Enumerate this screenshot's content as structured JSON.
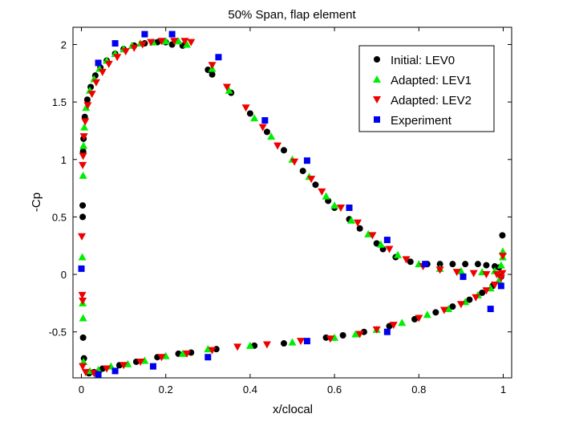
{
  "chart_data": {
    "type": "scatter",
    "title": "50% Span, flap element",
    "xlabel": "x/clocal",
    "ylabel": "-Cp",
    "xlim": [
      -0.02,
      1.02
    ],
    "ylim": [
      -0.9,
      2.15
    ],
    "x_ticks": [
      0,
      0.2,
      0.4,
      0.6,
      0.8,
      1
    ],
    "x_tick_labels": [
      "0",
      "0.2",
      "0.4",
      "0.6",
      "0.8",
      "1"
    ],
    "y_ticks": [
      -0.5,
      0,
      0.5,
      1,
      1.5,
      2
    ],
    "y_tick_labels": [
      "-0.5",
      "0",
      "0.5",
      "1",
      "1.5",
      "2"
    ],
    "grid": false,
    "legend_position": "top-right",
    "series": [
      {
        "name": "Initial: LEV0",
        "marker": "circle",
        "color": "#000000",
        "points": [
          [
            0.003,
            0.6
          ],
          [
            0.003,
            0.5
          ],
          [
            0.004,
            1.07
          ],
          [
            0.005,
            1.18
          ],
          [
            0.008,
            1.37
          ],
          [
            0.014,
            1.52
          ],
          [
            0.022,
            1.63
          ],
          [
            0.033,
            1.73
          ],
          [
            0.045,
            1.8
          ],
          [
            0.06,
            1.86
          ],
          [
            0.08,
            1.92
          ],
          [
            0.1,
            1.96
          ],
          [
            0.125,
            1.99
          ],
          [
            0.15,
            2.01
          ],
          [
            0.18,
            2.02
          ],
          [
            0.2,
            2.02
          ],
          [
            0.215,
            2.0
          ],
          [
            0.24,
            1.99
          ],
          [
            0.3,
            1.78
          ],
          [
            0.31,
            1.74
          ],
          [
            0.355,
            1.58
          ],
          [
            0.4,
            1.4
          ],
          [
            0.44,
            1.24
          ],
          [
            0.48,
            1.08
          ],
          [
            0.525,
            0.9
          ],
          [
            0.555,
            0.78
          ],
          [
            0.585,
            0.64
          ],
          [
            0.6,
            0.58
          ],
          [
            0.635,
            0.48
          ],
          [
            0.66,
            0.4
          ],
          [
            0.7,
            0.27
          ],
          [
            0.715,
            0.22
          ],
          [
            0.745,
            0.15
          ],
          [
            0.78,
            0.11
          ],
          [
            0.82,
            0.09
          ],
          [
            0.85,
            0.09
          ],
          [
            0.88,
            0.09
          ],
          [
            0.91,
            0.09
          ],
          [
            0.94,
            0.09
          ],
          [
            0.96,
            0.08
          ],
          [
            0.98,
            0.07
          ],
          [
            0.99,
            0.06
          ],
          [
            0.998,
            0.34
          ],
          [
            0.004,
            -0.55
          ],
          [
            0.006,
            -0.73
          ],
          [
            0.018,
            -0.86
          ],
          [
            0.03,
            -0.85
          ],
          [
            0.05,
            -0.82
          ],
          [
            0.09,
            -0.79
          ],
          [
            0.13,
            -0.76
          ],
          [
            0.18,
            -0.72
          ],
          [
            0.23,
            -0.69
          ],
          [
            0.26,
            -0.68
          ],
          [
            0.32,
            -0.65
          ],
          [
            0.41,
            -0.62
          ],
          [
            0.48,
            -0.6
          ],
          [
            0.58,
            -0.55
          ],
          [
            0.62,
            -0.53
          ],
          [
            0.67,
            -0.5
          ],
          [
            0.73,
            -0.45
          ],
          [
            0.79,
            -0.39
          ],
          [
            0.84,
            -0.33
          ],
          [
            0.88,
            -0.28
          ],
          [
            0.92,
            -0.22
          ],
          [
            0.95,
            -0.16
          ],
          [
            0.975,
            -0.1
          ],
          [
            0.995,
            -0.02
          ]
        ]
      },
      {
        "name": "Adapted: LEV1",
        "marker": "triangle-up",
        "color": "#00ee00",
        "points": [
          [
            0.002,
            0.15
          ],
          [
            0.003,
            -0.25
          ],
          [
            0.004,
            -0.38
          ],
          [
            0.004,
            0.86
          ],
          [
            0.005,
            1.12
          ],
          [
            0.007,
            1.28
          ],
          [
            0.011,
            1.45
          ],
          [
            0.02,
            1.6
          ],
          [
            0.03,
            1.7
          ],
          [
            0.043,
            1.79
          ],
          [
            0.06,
            1.86
          ],
          [
            0.08,
            1.92
          ],
          [
            0.1,
            1.96
          ],
          [
            0.12,
            1.99
          ],
          [
            0.14,
            2.01
          ],
          [
            0.17,
            2.02
          ],
          [
            0.2,
            2.03
          ],
          [
            0.23,
            2.03
          ],
          [
            0.25,
            2.0
          ],
          [
            0.31,
            1.79
          ],
          [
            0.35,
            1.6
          ],
          [
            0.41,
            1.36
          ],
          [
            0.45,
            1.2
          ],
          [
            0.5,
            1.0
          ],
          [
            0.54,
            0.85
          ],
          [
            0.58,
            0.68
          ],
          [
            0.6,
            0.6
          ],
          [
            0.64,
            0.47
          ],
          [
            0.68,
            0.35
          ],
          [
            0.71,
            0.26
          ],
          [
            0.75,
            0.17
          ],
          [
            0.8,
            0.09
          ],
          [
            0.85,
            0.05
          ],
          [
            0.9,
            0.03
          ],
          [
            0.95,
            0.02
          ],
          [
            0.98,
            0.03
          ],
          [
            0.995,
            0.08
          ],
          [
            0.999,
            0.2
          ],
          [
            0.999,
            0.15
          ],
          [
            0.005,
            -0.76
          ],
          [
            0.02,
            -0.84
          ],
          [
            0.04,
            -0.83
          ],
          [
            0.07,
            -0.8
          ],
          [
            0.11,
            -0.78
          ],
          [
            0.15,
            -0.75
          ],
          [
            0.2,
            -0.71
          ],
          [
            0.24,
            -0.69
          ],
          [
            0.3,
            -0.65
          ],
          [
            0.4,
            -0.62
          ],
          [
            0.5,
            -0.59
          ],
          [
            0.6,
            -0.55
          ],
          [
            0.65,
            -0.52
          ],
          [
            0.7,
            -0.48
          ],
          [
            0.76,
            -0.42
          ],
          [
            0.82,
            -0.35
          ],
          [
            0.87,
            -0.3
          ],
          [
            0.91,
            -0.24
          ],
          [
            0.94,
            -0.18
          ],
          [
            0.97,
            -0.12
          ],
          [
            0.99,
            -0.05
          ]
        ]
      },
      {
        "name": "Adapted: LEV2",
        "marker": "triangle-down",
        "color": "#ee0000",
        "points": [
          [
            0.001,
            0.33
          ],
          [
            0.002,
            -0.18
          ],
          [
            0.003,
            -0.23
          ],
          [
            0.003,
            0.95
          ],
          [
            0.004,
            1.03
          ],
          [
            0.006,
            1.2
          ],
          [
            0.009,
            1.33
          ],
          [
            0.015,
            1.47
          ],
          [
            0.025,
            1.57
          ],
          [
            0.035,
            1.67
          ],
          [
            0.05,
            1.76
          ],
          [
            0.065,
            1.83
          ],
          [
            0.085,
            1.89
          ],
          [
            0.105,
            1.94
          ],
          [
            0.125,
            1.97
          ],
          [
            0.145,
            2.0
          ],
          [
            0.165,
            2.02
          ],
          [
            0.19,
            2.03
          ],
          [
            0.22,
            2.03
          ],
          [
            0.245,
            2.03
          ],
          [
            0.26,
            2.02
          ],
          [
            0.31,
            1.82
          ],
          [
            0.345,
            1.63
          ],
          [
            0.39,
            1.45
          ],
          [
            0.43,
            1.28
          ],
          [
            0.465,
            1.12
          ],
          [
            0.505,
            0.98
          ],
          [
            0.545,
            0.83
          ],
          [
            0.57,
            0.72
          ],
          [
            0.615,
            0.58
          ],
          [
            0.655,
            0.45
          ],
          [
            0.69,
            0.34
          ],
          [
            0.73,
            0.22
          ],
          [
            0.77,
            0.13
          ],
          [
            0.81,
            0.07
          ],
          [
            0.85,
            0.04
          ],
          [
            0.89,
            0.02
          ],
          [
            0.93,
            0.01
          ],
          [
            0.96,
            0.0
          ],
          [
            0.985,
            0.0
          ],
          [
            0.998,
            0.01
          ],
          [
            0.999,
            0.16
          ],
          [
            0.003,
            -0.8
          ],
          [
            0.01,
            -0.85
          ],
          [
            0.03,
            -0.86
          ],
          [
            0.06,
            -0.82
          ],
          [
            0.1,
            -0.79
          ],
          [
            0.14,
            -0.76
          ],
          [
            0.19,
            -0.72
          ],
          [
            0.25,
            -0.69
          ],
          [
            0.31,
            -0.66
          ],
          [
            0.37,
            -0.63
          ],
          [
            0.44,
            -0.61
          ],
          [
            0.52,
            -0.58
          ],
          [
            0.59,
            -0.56
          ],
          [
            0.66,
            -0.52
          ],
          [
            0.7,
            -0.48
          ],
          [
            0.74,
            -0.44
          ],
          [
            0.8,
            -0.38
          ],
          [
            0.86,
            -0.31
          ],
          [
            0.9,
            -0.26
          ],
          [
            0.935,
            -0.2
          ],
          [
            0.96,
            -0.14
          ],
          [
            0.98,
            -0.09
          ],
          [
            0.995,
            -0.03
          ]
        ]
      },
      {
        "name": "Experiment",
        "marker": "square",
        "color": "#0000ee",
        "points": [
          [
            0.0,
            0.05
          ],
          [
            0.04,
            -0.87
          ],
          [
            0.04,
            1.84
          ],
          [
            0.08,
            -0.84
          ],
          [
            0.08,
            2.01
          ],
          [
            0.15,
            2.09
          ],
          [
            0.17,
            -0.8
          ],
          [
            0.215,
            2.09
          ],
          [
            0.3,
            -0.72
          ],
          [
            0.325,
            1.89
          ],
          [
            0.435,
            1.34
          ],
          [
            0.535,
            -0.58
          ],
          [
            0.535,
            0.99
          ],
          [
            0.635,
            0.58
          ],
          [
            0.725,
            0.3
          ],
          [
            0.725,
            -0.5
          ],
          [
            0.815,
            0.09
          ],
          [
            0.905,
            -0.02
          ],
          [
            0.97,
            -0.3
          ],
          [
            0.995,
            -0.1
          ]
        ]
      }
    ]
  }
}
